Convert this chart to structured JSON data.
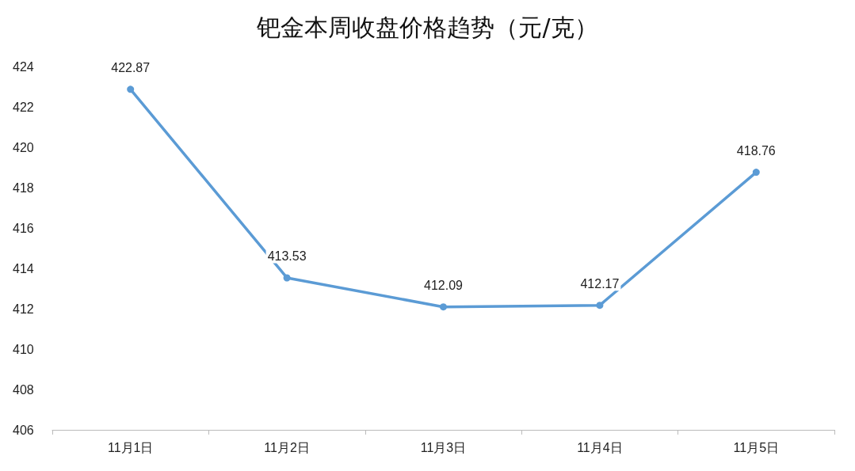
{
  "chart_data": {
    "type": "line",
    "title": "钯金本周收盘价格趋势（元/克）",
    "categories": [
      "11月1日",
      "11月2日",
      "11月3日",
      "11月4日",
      "11月5日"
    ],
    "series": [
      {
        "color": "#5b9bd5",
        "values": [
          422.87,
          413.53,
          412.09,
          412.17,
          418.76
        ]
      }
    ],
    "ylim": [
      406,
      424
    ],
    "yticks": [
      406,
      408,
      410,
      412,
      414,
      416,
      418,
      420,
      422,
      424
    ],
    "grid": false,
    "marker": "circle",
    "line_style": "solid",
    "data_labels": true
  }
}
